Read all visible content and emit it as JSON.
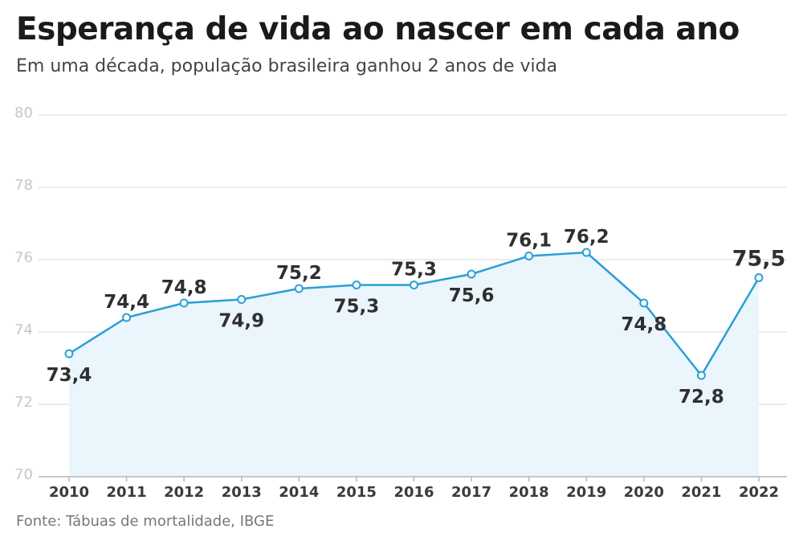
{
  "header": {
    "title": "Esperança de vida ao nascer em cada ano",
    "subtitle": "Em uma década, população brasileira ganhou 2 anos de vida"
  },
  "footer": {
    "source": "Fonte: Tábuas de mortalidade, IBGE"
  },
  "colors": {
    "line": "#2a9fd6",
    "area": "#eaf6fc",
    "grid": "#e6e6e6",
    "axis": "#b5b5b5"
  },
  "chart_data": {
    "type": "line",
    "title": "Esperança de vida ao nascer em cada ano",
    "subtitle": "Em uma década, população brasileira ganhou 2 anos de vida",
    "xlabel": "",
    "ylabel": "",
    "categories": [
      "2010",
      "2011",
      "2012",
      "2013",
      "2014",
      "2015",
      "2016",
      "2017",
      "2018",
      "2019",
      "2020",
      "2021",
      "2022"
    ],
    "values": [
      73.4,
      74.4,
      74.8,
      74.9,
      75.2,
      75.3,
      75.3,
      75.6,
      76.1,
      76.2,
      74.8,
      72.8,
      75.5
    ],
    "value_labels": [
      "73,4",
      "74,4",
      "74,8",
      "74,9",
      "75,2",
      "75,3",
      "75,3",
      "75,6",
      "76,1",
      "76,2",
      "74,8",
      "72,8",
      "75,5"
    ],
    "label_position": [
      "below",
      "above",
      "above",
      "below",
      "above",
      "below",
      "above",
      "below",
      "above",
      "above",
      "below",
      "below",
      "above"
    ],
    "ylim": [
      70,
      80
    ],
    "yticks": [
      70,
      72,
      74,
      76,
      78,
      80
    ],
    "ytick_labels": [
      "70",
      "72",
      "74",
      "76",
      "78",
      "80"
    ],
    "grid": true,
    "area_fill": true
  }
}
